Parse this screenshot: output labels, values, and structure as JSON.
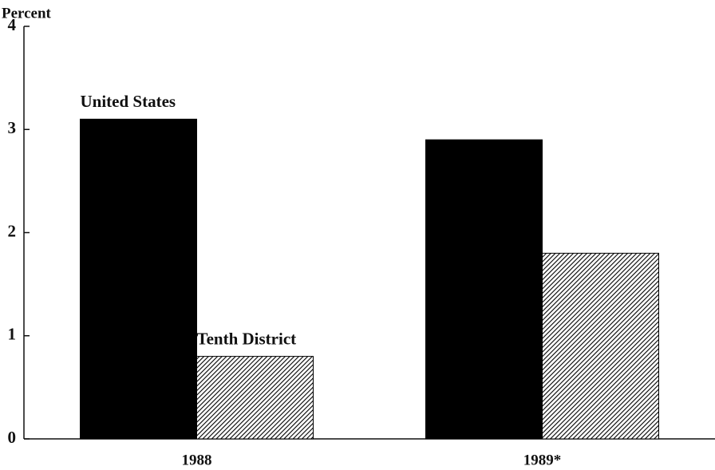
{
  "chart_data": {
    "type": "bar",
    "ylabel": "Percent",
    "categories": [
      "1988",
      "1989*"
    ],
    "series": [
      {
        "name": "United States",
        "color": "#000000",
        "values": [
          3.1,
          2.9
        ]
      },
      {
        "name": "Tenth District",
        "color": "#000000",
        "hatch": true,
        "values": [
          0.8,
          1.8
        ]
      }
    ],
    "ylim": [
      0,
      4
    ],
    "yticks": [
      0,
      1,
      2,
      3,
      4
    ]
  }
}
